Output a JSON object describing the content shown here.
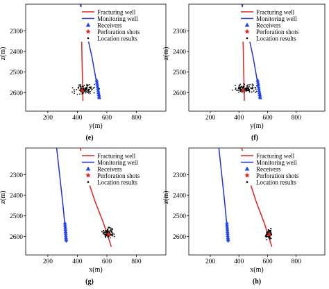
{
  "charts": [
    {
      "panel_label": "(e)",
      "xlabel": "y(m)",
      "ylabel": "z(m)"
    },
    {
      "panel_label": "(f)",
      "xlabel": "y(m)",
      "ylabel": "z(m)"
    },
    {
      "panel_label": "(g)",
      "xlabel": "x(m)",
      "ylabel": "z(m)"
    },
    {
      "panel_label": "(h)",
      "xlabel": "x(m)",
      "ylabel": "z(m)"
    }
  ],
  "legend": {
    "fracturing_well": "Fracturing well",
    "monitoring_well": "Monitoring well",
    "receivers": "Receivers",
    "perforation_shots": "Perforation shots",
    "location_results": "Location results"
  },
  "colors": {
    "fracturing_well": "#dd2222",
    "monitoring_well": "#2233cc",
    "receivers": "#2244ee",
    "perforation": "#dd2222",
    "location": "#000000"
  },
  "chart_data": [
    {
      "type": "scatter",
      "title": "",
      "xlabel": "y(m)",
      "ylabel": "z(m)",
      "xlim": [
        50,
        1000
      ],
      "ylim": [
        2170,
        2690
      ],
      "y_inverted": true,
      "xticks": [
        200,
        400,
        600,
        800
      ],
      "yticks": [
        2300,
        2400,
        2500,
        2600
      ],
      "legend_position": "top-right",
      "series": [
        {
          "name": "Fracturing well",
          "kind": "line",
          "x": [
            425,
            428,
            432,
            436,
            438
          ],
          "y": [
            2170,
            2300,
            2450,
            2570,
            2640
          ]
        },
        {
          "name": "Monitoring well",
          "kind": "line",
          "x": [
            420,
            460,
            500,
            530,
            555
          ],
          "y": [
            2170,
            2300,
            2430,
            2550,
            2620
          ]
        },
        {
          "name": "Receivers",
          "kind": "marker",
          "x": [
            531,
            533,
            535,
            537,
            539,
            541,
            543,
            545,
            547,
            549
          ],
          "y": [
            2540,
            2550,
            2560,
            2570,
            2580,
            2590,
            2600,
            2610,
            2620,
            2625
          ]
        },
        {
          "name": "Perforation shots",
          "kind": "marker",
          "x": [
            432
          ],
          "y": [
            2590
          ]
        },
        {
          "name": "Location results",
          "kind": "cloud",
          "x_range": [
            340,
            560
          ],
          "y_range": [
            2550,
            2615
          ],
          "count": 100
        }
      ]
    },
    {
      "type": "scatter",
      "title": "",
      "xlabel": "y(m)",
      "ylabel": "z(m)",
      "xlim": [
        50,
        1000
      ],
      "ylim": [
        2170,
        2690
      ],
      "y_inverted": true,
      "xticks": [
        200,
        400,
        600,
        800
      ],
      "yticks": [
        2300,
        2400,
        2500,
        2600
      ],
      "legend_position": "top-right",
      "series": [
        {
          "name": "Fracturing well",
          "kind": "line",
          "x": [
            425,
            428,
            432,
            436,
            438
          ],
          "y": [
            2170,
            2300,
            2450,
            2570,
            2640
          ]
        },
        {
          "name": "Monitoring well",
          "kind": "line",
          "x": [
            420,
            460,
            500,
            530,
            555
          ],
          "y": [
            2170,
            2300,
            2430,
            2550,
            2620
          ]
        },
        {
          "name": "Receivers",
          "kind": "marker",
          "x": [
            531,
            533,
            535,
            537,
            539,
            541,
            543,
            545,
            547,
            549
          ],
          "y": [
            2540,
            2550,
            2560,
            2570,
            2580,
            2590,
            2600,
            2610,
            2620,
            2625
          ]
        },
        {
          "name": "Perforation shots",
          "kind": "marker",
          "x": [
            432
          ],
          "y": [
            2590
          ]
        },
        {
          "name": "Location results",
          "kind": "cloud",
          "x_range": [
            330,
            550
          ],
          "y_range": [
            2555,
            2610
          ],
          "count": 110
        }
      ]
    },
    {
      "type": "scatter",
      "title": "",
      "xlabel": "x(m)",
      "ylabel": "z(m)",
      "xlim": [
        50,
        1000
      ],
      "ylim": [
        2170,
        2690
      ],
      "y_inverted": true,
      "xticks": [
        200,
        400,
        600,
        800
      ],
      "yticks": [
        2300,
        2400,
        2500,
        2600
      ],
      "legend_position": "top-right",
      "series": [
        {
          "name": "Fracturing well",
          "kind": "line",
          "x": [
            420,
            460,
            520,
            580,
            630
          ],
          "y": [
            2170,
            2300,
            2430,
            2540,
            2650
          ]
        },
        {
          "name": "Monitoring well",
          "kind": "line",
          "x": [
            260,
            280,
            300,
            318,
            325
          ],
          "y": [
            2170,
            2300,
            2430,
            2560,
            2630
          ]
        },
        {
          "name": "Receivers",
          "kind": "marker",
          "x": [
            316,
            317,
            318,
            319,
            320,
            321,
            322,
            323,
            324,
            325
          ],
          "y": [
            2535,
            2545,
            2555,
            2565,
            2575,
            2585,
            2595,
            2605,
            2612,
            2618
          ]
        },
        {
          "name": "Perforation shots",
          "kind": "marker",
          "x": [
            612
          ],
          "y": [
            2590
          ]
        },
        {
          "name": "Location results",
          "kind": "cloud",
          "x_range": [
            560,
            660
          ],
          "y_range": [
            2545,
            2620
          ],
          "count": 90
        }
      ]
    },
    {
      "type": "scatter",
      "title": "",
      "xlabel": "x(m)",
      "ylabel": "z(m)",
      "xlim": [
        50,
        1000
      ],
      "ylim": [
        2170,
        2690
      ],
      "y_inverted": true,
      "xticks": [
        200,
        400,
        600,
        800
      ],
      "yticks": [
        2300,
        2400,
        2500,
        2600
      ],
      "legend_position": "top-right",
      "series": [
        {
          "name": "Fracturing well",
          "kind": "line",
          "x": [
            420,
            460,
            520,
            580,
            630
          ],
          "y": [
            2170,
            2300,
            2430,
            2540,
            2650
          ]
        },
        {
          "name": "Monitoring well",
          "kind": "line",
          "x": [
            260,
            280,
            300,
            318,
            325
          ],
          "y": [
            2170,
            2300,
            2430,
            2560,
            2630
          ]
        },
        {
          "name": "Receivers",
          "kind": "marker",
          "x": [
            316,
            317,
            318,
            319,
            320,
            321,
            322,
            323,
            324,
            325
          ],
          "y": [
            2535,
            2545,
            2555,
            2565,
            2575,
            2585,
            2595,
            2605,
            2612,
            2618
          ]
        },
        {
          "name": "Perforation shots",
          "kind": "marker",
          "x": [
            612
          ],
          "y": [
            2590
          ]
        },
        {
          "name": "Location results",
          "kind": "cloud",
          "x_range": [
            580,
            640
          ],
          "y_range": [
            2555,
            2620
          ],
          "count": 80
        }
      ]
    }
  ]
}
